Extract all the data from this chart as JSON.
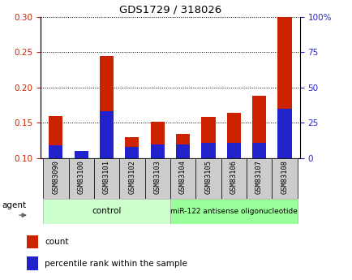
{
  "title": "GDS1729 / 318026",
  "samples": [
    "GSM83090",
    "GSM83100",
    "GSM83101",
    "GSM83102",
    "GSM83103",
    "GSM83104",
    "GSM83105",
    "GSM83106",
    "GSM83107",
    "GSM83108"
  ],
  "count_values": [
    0.16,
    0.1,
    0.244,
    0.13,
    0.151,
    0.134,
    0.158,
    0.164,
    0.188,
    0.3
  ],
  "percentile_values": [
    9,
    5,
    33,
    8,
    10,
    10,
    11,
    11,
    11,
    35
  ],
  "ylim_left": [
    0.1,
    0.3
  ],
  "ylim_right": [
    0,
    100
  ],
  "yticks_left": [
    0.1,
    0.15,
    0.2,
    0.25,
    0.3
  ],
  "yticks_right": [
    0,
    25,
    50,
    75,
    100
  ],
  "ytick_labels_right": [
    "0",
    "25",
    "50",
    "75",
    "100%"
  ],
  "bar_color_count": "#cc2200",
  "bar_color_pct": "#2222cc",
  "bar_width": 0.55,
  "group1_label": "control",
  "group2_label": "miR-122 antisense oligonucleotide",
  "group1_indices": [
    0,
    1,
    2,
    3,
    4
  ],
  "group2_indices": [
    5,
    6,
    7,
    8,
    9
  ],
  "group1_color": "#ccffcc",
  "group2_color": "#99ff99",
  "agent_label": "agent",
  "legend_count_label": "count",
  "legend_pct_label": "percentile rank within the sample",
  "sample_box_color": "#cccccc",
  "left_tick_color": "#cc2200",
  "right_tick_color": "#2222cc"
}
